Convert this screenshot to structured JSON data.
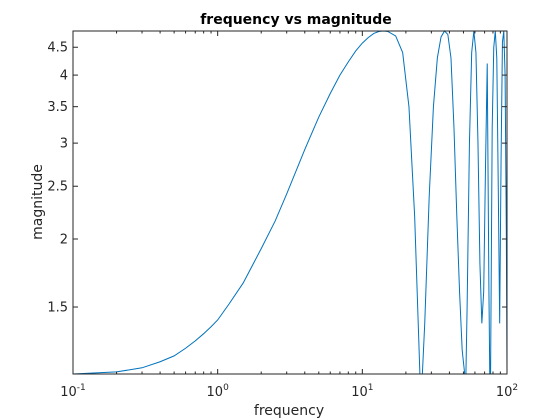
{
  "chart_data": {
    "type": "line",
    "title": "frequency vs magnitude",
    "xlabel": "frequency",
    "ylabel": "magnitude",
    "xscale": "log",
    "yscale": "log",
    "xlim": [
      0.1,
      100
    ],
    "ylim": [
      1.13,
      4.82
    ],
    "grid": false,
    "legend": "none",
    "line_color": "#0072bd",
    "x_ticks": [
      {
        "base": "10",
        "exp": "-1"
      },
      {
        "base": "10",
        "exp": "0"
      },
      {
        "base": "10",
        "exp": "1"
      },
      {
        "base": "10",
        "exp": "2"
      }
    ],
    "y_ticks": [
      {
        "value": 1.5,
        "label": "1.5"
      },
      {
        "value": 2,
        "label": "2"
      },
      {
        "value": 2.5,
        "label": "2.5"
      },
      {
        "value": 3,
        "label": "3"
      },
      {
        "value": 3.5,
        "label": "3.5"
      },
      {
        "value": 4,
        "label": "4"
      },
      {
        "value": 4.5,
        "label": "4.5"
      }
    ],
    "series": [
      {
        "x": [
          0.1,
          0.2,
          0.3,
          0.4,
          0.5,
          0.6,
          0.7,
          0.8,
          0.9,
          1.0,
          1.2,
          1.5,
          2.0,
          2.5,
          3.0,
          4.0,
          5.0,
          6.0,
          7.0,
          8.0,
          9.0,
          10,
          11,
          12,
          13,
          14,
          15,
          17,
          19,
          21,
          23,
          25,
          26,
          27,
          29,
          31,
          33,
          35,
          37,
          39,
          41,
          43,
          45,
          47,
          49,
          51,
          52,
          53,
          55,
          57,
          59,
          61,
          63,
          65,
          67,
          69,
          71,
          73,
          75,
          76,
          77,
          79,
          81,
          83,
          85,
          87,
          89,
          91,
          93,
          95,
          97,
          99,
          100
        ],
        "y": [
          1.13,
          1.14,
          1.16,
          1.19,
          1.22,
          1.26,
          1.3,
          1.34,
          1.38,
          1.42,
          1.52,
          1.66,
          1.92,
          2.16,
          2.42,
          2.92,
          3.35,
          3.7,
          4.0,
          4.23,
          4.43,
          4.58,
          4.69,
          4.77,
          4.81,
          4.82,
          4.81,
          4.72,
          4.4,
          3.5,
          2.2,
          1.13,
          1.13,
          1.4,
          2.4,
          3.5,
          4.3,
          4.7,
          4.82,
          4.75,
          4.3,
          3.2,
          2.2,
          1.6,
          1.25,
          1.13,
          1.13,
          1.5,
          3.0,
          4.4,
          4.82,
          4.4,
          3.0,
          1.8,
          1.4,
          1.6,
          2.7,
          4.2,
          1.6,
          1.13,
          1.13,
          3.2,
          4.5,
          4.82,
          4.3,
          2.5,
          1.4,
          2.8,
          4.6,
          4.82,
          4.0,
          2.0,
          1.13
        ]
      }
    ]
  }
}
